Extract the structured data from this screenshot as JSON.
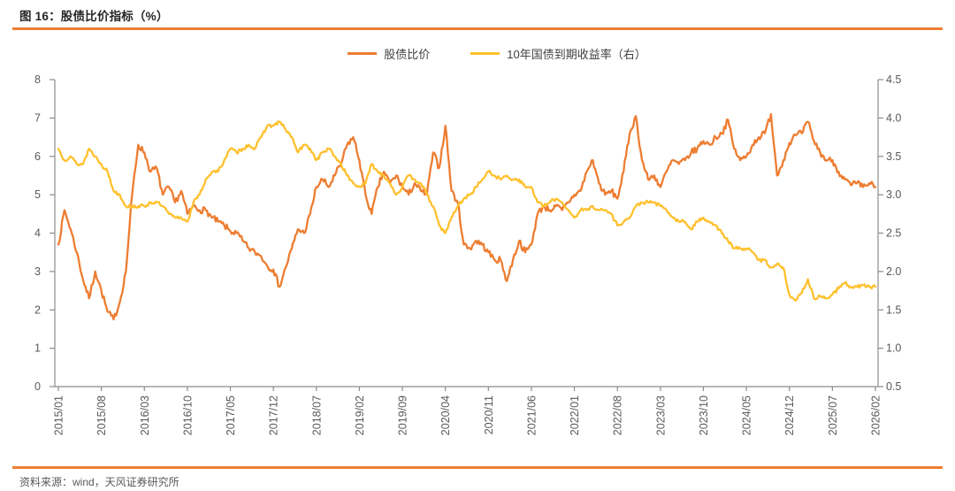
{
  "figure": {
    "title": "图 16：股债比价指标（%）",
    "source": "资料来源：wind，天风证券研究所"
  },
  "colors": {
    "accent_rule": "#ED7D31",
    "series_stock_bond_ratio": "#ED7D31",
    "series_10y_yield": "#FFC02C",
    "axis_line": "#8C8C8C",
    "tick_text": "#595959",
    "title_text": "#262626",
    "legend_text": "#404040",
    "source_text": "#595959",
    "background": "#FFFFFF"
  },
  "chart_data": {
    "type": "line",
    "title": "图 16：股债比价指标（%）",
    "x_unit": "month",
    "x_start": "2015/01",
    "x_end": "2026/02",
    "x_interval_months": 1,
    "x_tick_labels": [
      "2015/01",
      "2015/08",
      "2016/03",
      "2016/10",
      "2017/05",
      "2017/12",
      "2018/07",
      "2019/02",
      "2019/09",
      "2020/04",
      "2020/11",
      "2021/06",
      "2022/01",
      "2022/08",
      "2023/03",
      "2023/10",
      "2024/05",
      "2024/12",
      "2025/07",
      "2026/02"
    ],
    "left_axis": {
      "min": 0,
      "max": 8,
      "step": 1
    },
    "right_axis": {
      "min": 0.5,
      "max": 4.5,
      "step": 0.5
    },
    "grid": false,
    "legend_position": "top",
    "series": [
      {
        "name": "股债比价",
        "axis": "left",
        "color": "#ED7D31",
        "values": [
          3.7,
          4.6,
          4.1,
          3.5,
          2.8,
          2.3,
          3.0,
          2.5,
          1.95,
          1.75,
          2.2,
          3.0,
          5.0,
          6.3,
          6.1,
          5.6,
          5.7,
          5.0,
          5.2,
          4.8,
          5.1,
          4.5,
          4.7,
          4.6,
          4.6,
          4.4,
          4.3,
          4.2,
          4.05,
          4.0,
          3.8,
          3.6,
          3.5,
          3.4,
          3.15,
          3.05,
          2.6,
          3.1,
          3.6,
          4.1,
          4.0,
          4.5,
          5.2,
          5.4,
          5.2,
          5.5,
          5.8,
          6.3,
          6.5,
          5.9,
          5.0,
          4.5,
          5.2,
          5.6,
          5.3,
          5.5,
          5.2,
          5.0,
          5.3,
          5.1,
          5.0,
          6.1,
          5.7,
          6.8,
          5.1,
          4.8,
          3.7,
          3.6,
          3.8,
          3.7,
          3.5,
          3.3,
          3.3,
          2.75,
          3.3,
          3.8,
          3.5,
          3.7,
          4.5,
          4.7,
          4.6,
          4.7,
          4.6,
          4.8,
          5.0,
          5.1,
          5.6,
          5.9,
          5.3,
          5.0,
          5.1,
          4.9,
          5.6,
          6.6,
          7.05,
          5.9,
          5.4,
          5.5,
          5.2,
          5.6,
          5.9,
          5.8,
          5.9,
          6.1,
          6.2,
          6.4,
          6.3,
          6.5,
          6.6,
          6.95,
          6.2,
          5.9,
          6.0,
          6.3,
          6.5,
          6.6,
          7.1,
          5.5,
          5.9,
          6.35,
          6.55,
          6.6,
          6.9,
          6.4,
          6.1,
          5.9,
          5.9,
          5.6,
          5.4,
          5.25,
          5.3,
          5.2,
          5.3,
          5.2
        ]
      },
      {
        "name": "10年国债到期收益率（右）",
        "axis": "right",
        "color": "#FFC02C",
        "values": [
          3.6,
          3.45,
          3.5,
          3.4,
          3.4,
          3.6,
          3.5,
          3.4,
          3.3,
          3.05,
          3.0,
          2.85,
          2.85,
          2.85,
          2.85,
          2.9,
          2.9,
          2.85,
          2.75,
          2.7,
          2.7,
          2.65,
          2.9,
          3.0,
          3.2,
          3.3,
          3.3,
          3.45,
          3.6,
          3.55,
          3.6,
          3.65,
          3.6,
          3.75,
          3.9,
          3.9,
          3.95,
          3.85,
          3.75,
          3.55,
          3.65,
          3.6,
          3.45,
          3.55,
          3.6,
          3.5,
          3.4,
          3.25,
          3.15,
          3.1,
          3.15,
          3.4,
          3.3,
          3.25,
          3.15,
          3.0,
          3.1,
          3.25,
          3.2,
          3.15,
          3.0,
          2.85,
          2.6,
          2.5,
          2.7,
          2.85,
          2.95,
          3.0,
          3.1,
          3.2,
          3.3,
          3.25,
          3.2,
          3.25,
          3.2,
          3.2,
          3.1,
          3.1,
          2.9,
          2.85,
          2.9,
          2.95,
          2.9,
          2.8,
          2.7,
          2.8,
          2.8,
          2.85,
          2.8,
          2.8,
          2.75,
          2.6,
          2.65,
          2.7,
          2.85,
          2.9,
          2.9,
          2.9,
          2.85,
          2.8,
          2.7,
          2.65,
          2.65,
          2.55,
          2.65,
          2.7,
          2.65,
          2.6,
          2.5,
          2.4,
          2.3,
          2.3,
          2.3,
          2.25,
          2.15,
          2.15,
          2.05,
          2.1,
          2.05,
          1.7,
          1.62,
          1.72,
          1.9,
          1.65,
          1.68,
          1.65,
          1.7,
          1.78,
          1.85,
          1.8,
          1.8,
          1.82,
          1.8,
          1.8
        ]
      }
    ]
  }
}
